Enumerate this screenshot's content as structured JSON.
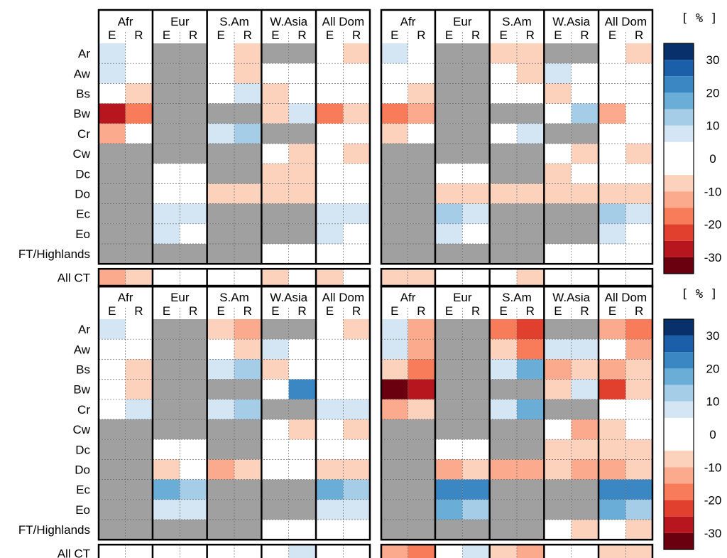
{
  "chart_data": {
    "type": "heatmap",
    "unit_label": "[ % ]",
    "colorbar": {
      "ticks": [
        30,
        20,
        10,
        0,
        -10,
        -20,
        -30
      ],
      "range": [
        -35,
        35
      ],
      "bins": [
        {
          "from": 30,
          "to": 35,
          "color": "#08306b"
        },
        {
          "from": 25,
          "to": 30,
          "color": "#1a5fa8"
        },
        {
          "from": 20,
          "to": 25,
          "color": "#3a87c4"
        },
        {
          "from": 15,
          "to": 20,
          "color": "#6aaed8"
        },
        {
          "from": 10,
          "to": 15,
          "color": "#a6cde7"
        },
        {
          "from": 5,
          "to": 10,
          "color": "#d4e5f4"
        },
        {
          "from": 0,
          "to": 5,
          "color": "#ffffff"
        },
        {
          "from": -5,
          "to": 0,
          "color": "#ffffff"
        },
        {
          "from": -10,
          "to": -5,
          "color": "#fcd2bd"
        },
        {
          "from": -15,
          "to": -10,
          "color": "#fcaa8e"
        },
        {
          "from": -20,
          "to": -15,
          "color": "#f97c5a"
        },
        {
          "from": -25,
          "to": -20,
          "color": "#e2402e"
        },
        {
          "from": -30,
          "to": -25,
          "color": "#b7161e"
        },
        {
          "from": -35,
          "to": -30,
          "color": "#6a000f"
        }
      ],
      "missing_color": "#a0a0a0"
    },
    "rows": [
      "Ar",
      "Aw",
      "Bs",
      "Bw",
      "Cr",
      "Cw",
      "Dc",
      "Do",
      "Ec",
      "Eo",
      "FT/Highlands"
    ],
    "summary_row": "All CT",
    "regions": [
      "Afr",
      "Eur",
      "S.Am",
      "W.Asia",
      "All Dom"
    ],
    "subcolumns": [
      "E",
      "R"
    ],
    "panels": [
      {
        "name": "upper",
        "halves": [
          {
            "name": "left",
            "matrix": [
              [
                7,
                0,
                null,
                null,
                0,
                -7,
                null,
                null,
                0,
                -7
              ],
              [
                7,
                0,
                null,
                null,
                0,
                -7,
                0,
                0,
                0,
                0
              ],
              [
                0,
                -7,
                null,
                null,
                0,
                7,
                -7,
                0,
                0,
                0
              ],
              [
                -28,
                -18,
                null,
                null,
                null,
                null,
                -7,
                7,
                -18,
                -7
              ],
              [
                -12,
                0,
                null,
                null,
                7,
                12,
                null,
                null,
                0,
                0
              ],
              [
                null,
                null,
                null,
                null,
                null,
                null,
                0,
                -7,
                0,
                -7
              ],
              [
                null,
                null,
                0,
                0,
                null,
                null,
                -7,
                -7,
                0,
                0
              ],
              [
                null,
                null,
                0,
                0,
                -7,
                -7,
                -7,
                -7,
                0,
                0
              ],
              [
                null,
                null,
                7,
                7,
                null,
                null,
                null,
                null,
                7,
                7
              ],
              [
                null,
                null,
                7,
                0,
                null,
                null,
                null,
                null,
                7,
                0
              ],
              [
                null,
                null,
                null,
                null,
                null,
                null,
                0,
                0,
                0,
                0
              ]
            ],
            "summary": [
              -12,
              -7,
              0,
              0,
              0,
              0,
              -7,
              0,
              -7,
              0
            ]
          },
          {
            "name": "right",
            "matrix": [
              [
                7,
                0,
                null,
                null,
                -7,
                -7,
                null,
                null,
                0,
                -7
              ],
              [
                0,
                0,
                null,
                null,
                0,
                -7,
                7,
                0,
                0,
                0
              ],
              [
                0,
                -7,
                null,
                null,
                0,
                0,
                -7,
                0,
                0,
                0
              ],
              [
                -18,
                -12,
                null,
                null,
                null,
                null,
                0,
                12,
                -12,
                0
              ],
              [
                -7,
                0,
                null,
                null,
                0,
                7,
                null,
                null,
                0,
                0
              ],
              [
                null,
                null,
                null,
                null,
                null,
                null,
                0,
                -7,
                0,
                -7
              ],
              [
                null,
                null,
                0,
                0,
                null,
                null,
                -7,
                0,
                0,
                0
              ],
              [
                null,
                null,
                -7,
                -7,
                -7,
                -7,
                -7,
                -7,
                -7,
                -7
              ],
              [
                null,
                null,
                12,
                7,
                null,
                null,
                null,
                null,
                12,
                7
              ],
              [
                null,
                null,
                7,
                0,
                null,
                null,
                null,
                null,
                7,
                0
              ],
              [
                null,
                null,
                null,
                null,
                null,
                null,
                0,
                0,
                0,
                0
              ]
            ],
            "summary": [
              -7,
              -7,
              0,
              0,
              0,
              -7,
              0,
              0,
              0,
              0
            ]
          }
        ]
      },
      {
        "name": "lower",
        "halves": [
          {
            "name": "left",
            "matrix": [
              [
                7,
                0,
                null,
                null,
                -7,
                -12,
                null,
                null,
                0,
                -7
              ],
              [
                0,
                0,
                null,
                null,
                0,
                -7,
                7,
                0,
                0,
                0
              ],
              [
                0,
                -7,
                null,
                null,
                7,
                12,
                -7,
                0,
                0,
                0
              ],
              [
                0,
                -7,
                null,
                null,
                null,
                null,
                0,
                22,
                0,
                0
              ],
              [
                0,
                7,
                null,
                null,
                7,
                12,
                null,
                null,
                7,
                7
              ],
              [
                null,
                null,
                null,
                null,
                null,
                null,
                0,
                -7,
                0,
                -7
              ],
              [
                null,
                null,
                0,
                0,
                null,
                null,
                0,
                0,
                0,
                0
              ],
              [
                null,
                null,
                -7,
                0,
                -12,
                -7,
                0,
                0,
                -7,
                -7
              ],
              [
                null,
                null,
                18,
                12,
                null,
                null,
                null,
                null,
                18,
                12
              ],
              [
                null,
                null,
                7,
                7,
                null,
                null,
                null,
                null,
                7,
                7
              ],
              [
                null,
                null,
                null,
                null,
                null,
                null,
                0,
                0,
                0,
                0
              ]
            ],
            "summary": [
              0,
              0,
              0,
              0,
              0,
              0,
              0,
              7,
              0,
              0
            ]
          },
          {
            "name": "right",
            "matrix": [
              [
                7,
                -12,
                null,
                null,
                -18,
                -22,
                null,
                null,
                -12,
                -18
              ],
              [
                7,
                -12,
                null,
                null,
                -7,
                -18,
                7,
                7,
                0,
                -12
              ],
              [
                -7,
                -18,
                null,
                null,
                7,
                18,
                -12,
                -7,
                -12,
                -7
              ],
              [
                -33,
                -28,
                null,
                null,
                null,
                null,
                -7,
                7,
                -22,
                -7
              ],
              [
                -12,
                -7,
                null,
                null,
                7,
                18,
                null,
                null,
                0,
                0
              ],
              [
                null,
                null,
                null,
                null,
                null,
                null,
                0,
                -12,
                -7,
                0
              ],
              [
                null,
                null,
                0,
                0,
                null,
                null,
                -7,
                -7,
                -7,
                -7
              ],
              [
                null,
                null,
                -12,
                -7,
                -12,
                -12,
                -7,
                -12,
                -12,
                -7
              ],
              [
                null,
                null,
                22,
                22,
                null,
                null,
                null,
                null,
                22,
                22
              ],
              [
                null,
                null,
                18,
                12,
                null,
                null,
                null,
                null,
                18,
                12
              ],
              [
                null,
                null,
                null,
                null,
                null,
                null,
                0,
                -7,
                0,
                -7
              ]
            ],
            "summary": [
              -12,
              -18,
              0,
              7,
              -7,
              -12,
              0,
              0,
              -7,
              -7
            ]
          }
        ]
      }
    ]
  }
}
